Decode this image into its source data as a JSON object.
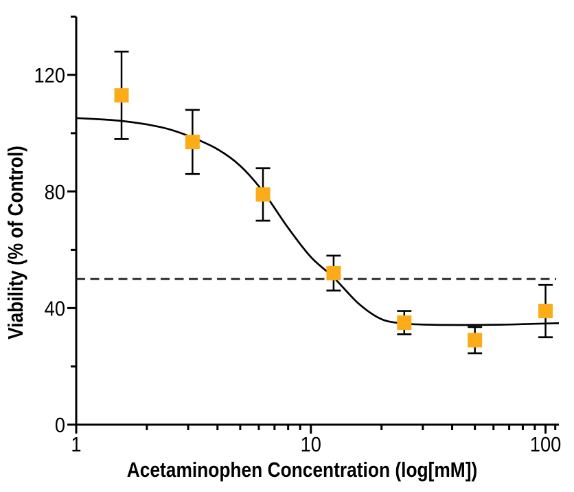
{
  "chart_data": {
    "type": "scatter",
    "title": "",
    "xlabel": "Acetaminophen Concentration (log[mM])",
    "ylabel": "Viability (% of Control)",
    "x_scale": "log",
    "xlim": [
      1,
      114
    ],
    "ylim": [
      0,
      140
    ],
    "x_major_ticks": [
      1,
      10,
      100
    ],
    "x_major_tick_labels": [
      "1",
      "10",
      "100"
    ],
    "x_minor_ticks": [
      2,
      3,
      4,
      5,
      6,
      7,
      8,
      9,
      20,
      30,
      40,
      50,
      60,
      70,
      80,
      90,
      110
    ],
    "y_major_ticks": [
      0,
      40,
      80,
      120
    ],
    "y_major_tick_labels": [
      "0",
      "40",
      "80",
      "120"
    ],
    "y_minor_ticks": [
      20,
      60,
      100,
      140
    ],
    "grid": false,
    "legend": null,
    "colors": {
      "marker": "#FBAC18",
      "curve": "#000000",
      "axis": "#000000",
      "reference_line": "#1a1a1a",
      "text": "#000000",
      "background": "#FFFFFF"
    },
    "series": [
      {
        "name": "Viability",
        "marker": "square",
        "x_mM": [
          1.56,
          3.13,
          6.25,
          12.5,
          25,
          50,
          100
        ],
        "y_pct": [
          113,
          97,
          79,
          52,
          35,
          29,
          39
        ],
        "y_err_pct": [
          15,
          11,
          9,
          6,
          4,
          4.5,
          9
        ]
      }
    ],
    "reference_line": {
      "y": 50,
      "style": "dashed"
    },
    "fit_curve": {
      "style": "solid",
      "points": [
        [
          1.0,
          105.2
        ],
        [
          1.3,
          104.7
        ],
        [
          1.56,
          104.2
        ],
        [
          2.0,
          103.0
        ],
        [
          2.5,
          101.3
        ],
        [
          3.13,
          98.5
        ],
        [
          4.0,
          94.5
        ],
        [
          5.0,
          88.8
        ],
        [
          6.25,
          80.0
        ],
        [
          8.0,
          67.5
        ],
        [
          10.0,
          57.5
        ],
        [
          12.5,
          50.5
        ],
        [
          16.0,
          41.5
        ],
        [
          20.0,
          36.2
        ],
        [
          25.0,
          34.7
        ],
        [
          32.0,
          34.3
        ],
        [
          40.0,
          34.2
        ],
        [
          50.0,
          34.2
        ],
        [
          65.0,
          34.3
        ],
        [
          80.0,
          34.5
        ],
        [
          100.0,
          34.7
        ],
        [
          114.0,
          34.8
        ]
      ]
    }
  }
}
